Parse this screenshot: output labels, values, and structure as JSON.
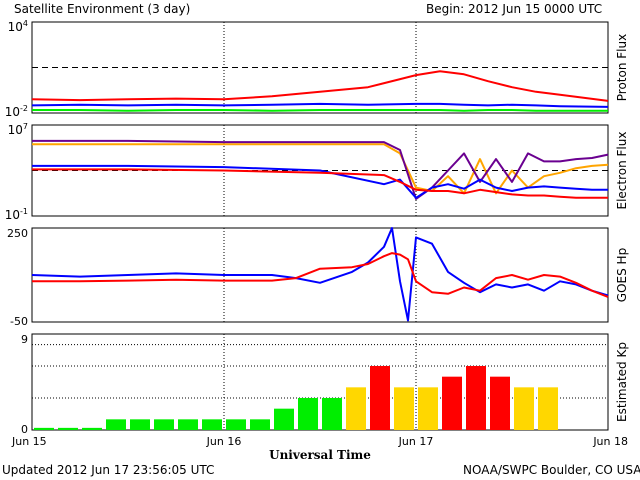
{
  "header": {
    "title": "Satellite Environment (3 day)",
    "begin": "Begin:  2012 Jun 15 0000 UTC"
  },
  "footer": {
    "updated": "Updated 2012 Jun 17 23:56:05 UTC",
    "source": "NOAA/SWPC Boulder, CO USA"
  },
  "x_axis": {
    "label": "Universal Time",
    "ticks": [
      "Jun 15",
      "Jun 16",
      "Jun 17",
      "Jun 18"
    ]
  },
  "colors": {
    "red": "#ff0000",
    "blue": "#0000ff",
    "green": "#00ee00",
    "orange": "#ffa500",
    "purple": "#6a0090",
    "kp_yellow": "#ffd700"
  },
  "chart_data": [
    {
      "type": "line",
      "title": "Proton Flux",
      "ylabel": "Proton Flux",
      "y_ticks": [
        {
          "mantissa": "10",
          "exp": "4"
        },
        {
          "mantissa": "10",
          "exp": "-2"
        }
      ],
      "ylim": [
        -2,
        4
      ],
      "log_scale": true,
      "threshold": 1,
      "x": [
        0,
        6,
        12,
        18,
        24,
        30,
        36,
        42,
        48,
        51,
        54,
        57,
        60,
        63,
        66,
        72
      ],
      "series": [
        {
          "color": "red",
          "values": [
            -1.1,
            -1.15,
            -1.1,
            -1.05,
            -1.1,
            -0.9,
            -0.6,
            -0.3,
            0.5,
            0.75,
            0.55,
            0.1,
            -0.3,
            -0.6,
            -0.8,
            -1.2
          ]
        },
        {
          "color": "blue",
          "values": [
            -1.5,
            -1.45,
            -1.5,
            -1.45,
            -1.5,
            -1.45,
            -1.4,
            -1.45,
            -1.4,
            -1.4,
            -1.45,
            -1.5,
            -1.45,
            -1.5,
            -1.55,
            -1.6
          ]
        },
        {
          "color": "green",
          "values": [
            -1.8,
            -1.8,
            -1.85,
            -1.8,
            -1.8,
            -1.85,
            -1.8,
            -1.8,
            -1.8,
            -1.8,
            -1.85,
            -1.8,
            -1.8,
            -1.85,
            -1.85,
            -1.85
          ]
        }
      ]
    },
    {
      "type": "line",
      "title": "Electron Flux",
      "ylabel": "Electron Flux",
      "y_ticks": [
        {
          "mantissa": "10",
          "exp": "7"
        },
        {
          "mantissa": "10",
          "exp": "-1"
        }
      ],
      "ylim": [
        -1,
        7
      ],
      "log_scale": true,
      "threshold": 3,
      "x": [
        0,
        12,
        24,
        36,
        44,
        46,
        48,
        50,
        52,
        54,
        56,
        58,
        60,
        62,
        64,
        66,
        68,
        70,
        72
      ],
      "series": [
        {
          "color": "orange",
          "values": [
            5.3,
            5.3,
            5.3,
            5.3,
            5.3,
            4.5,
            1.5,
            1.2,
            2.5,
            1.0,
            4.0,
            1.0,
            3.0,
            1.5,
            2.5,
            2.8,
            3.2,
            3.4,
            3.5
          ]
        },
        {
          "color": "purple",
          "values": [
            5.6,
            5.6,
            5.5,
            5.5,
            5.5,
            4.8,
            0.5,
            1.5,
            3.0,
            4.5,
            2.0,
            4.0,
            2.0,
            4.5,
            3.8,
            3.8,
            4.0,
            4.1,
            4.4
          ]
        },
        {
          "color": "blue",
          "values": [
            3.4,
            3.4,
            3.3,
            3.0,
            1.8,
            2.2,
            0.6,
            1.5,
            1.8,
            1.4,
            2.2,
            1.5,
            1.2,
            1.5,
            1.6,
            1.5,
            1.4,
            1.3,
            1.3
          ]
        },
        {
          "color": "red",
          "values": [
            3.1,
            3.1,
            3.0,
            2.8,
            2.6,
            2.0,
            1.3,
            1.2,
            1.2,
            1.0,
            1.3,
            1.1,
            0.9,
            0.8,
            0.8,
            0.7,
            0.6,
            0.6,
            0.6
          ]
        }
      ]
    },
    {
      "type": "line",
      "title": "GOES Hp",
      "ylabel": "GOES Hp",
      "y_ticks": [
        "250",
        "-50"
      ],
      "ylim": [
        -50,
        250
      ],
      "x": [
        0,
        6,
        12,
        18,
        24,
        30,
        33,
        36,
        40,
        42,
        44,
        45,
        46,
        47,
        48,
        50,
        52,
        54,
        56,
        58,
        60,
        62,
        64,
        66,
        68,
        70,
        72
      ],
      "series": [
        {
          "color": "blue",
          "values": [
            100,
            95,
            100,
            105,
            100,
            100,
            90,
            75,
            110,
            140,
            190,
            250,
            80,
            -45,
            220,
            200,
            110,
            75,
            45,
            70,
            60,
            70,
            50,
            80,
            70,
            50,
            35
          ]
        },
        {
          "color": "red",
          "values": [
            80,
            80,
            82,
            85,
            82,
            82,
            90,
            120,
            125,
            135,
            160,
            170,
            165,
            150,
            80,
            45,
            40,
            60,
            50,
            90,
            100,
            85,
            100,
            95,
            75,
            50,
            30
          ]
        }
      ]
    },
    {
      "type": "bar",
      "title": "Estimated Kp",
      "ylabel": "Estimated Kp",
      "y_ticks": [
        "9",
        "0"
      ],
      "ylim": [
        0,
        9
      ],
      "x_range": [
        0,
        72
      ],
      "bar_hours": 3,
      "levels": [
        0.2,
        0.2,
        0.2,
        1,
        1,
        1,
        1,
        1,
        1,
        1,
        2,
        3,
        3,
        4,
        6,
        4,
        4,
        5,
        6,
        5,
        4,
        4
      ],
      "bar_colors": [
        "green",
        "green",
        "green",
        "green",
        "green",
        "green",
        "green",
        "green",
        "green",
        "green",
        "green",
        "green",
        "green",
        "kp_yellow",
        "red",
        "kp_yellow",
        "kp_yellow",
        "red",
        "red",
        "red",
        "kp_yellow",
        "kp_yellow"
      ]
    }
  ]
}
